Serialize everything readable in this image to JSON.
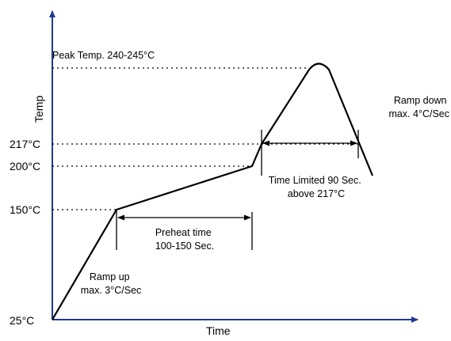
{
  "axes": {
    "x_label": "Time",
    "y_label": "Temp"
  },
  "temperature_labels": {
    "t25": "25°C",
    "t150": "150°C",
    "t200": "200°C",
    "t217": "217°C"
  },
  "peak_label": "Peak Temp. 240-245°C",
  "annotations": {
    "ramp_up": [
      "Ramp up",
      "max. 3°C/Sec"
    ],
    "preheat": [
      "Preheat time",
      "100-150 Sec."
    ],
    "time_limited": [
      "Time Limited 90 Sec.",
      "above 217°C"
    ],
    "ramp_down": [
      "Ramp down",
      "max. 4°C/Sec"
    ]
  },
  "colors": {
    "axis": "#1f3a93",
    "line": "#000000"
  }
}
